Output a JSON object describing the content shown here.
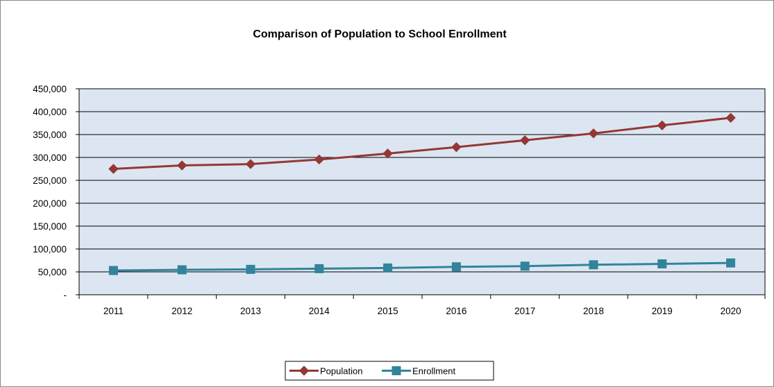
{
  "chart_data": {
    "type": "line",
    "title": "Comparison of Population to School Enrollment",
    "xlabel": "",
    "ylabel": "",
    "categories": [
      "2011",
      "2012",
      "2013",
      "2014",
      "2015",
      "2016",
      "2017",
      "2018",
      "2019",
      "2020"
    ],
    "ylim": [
      0,
      450000
    ],
    "yticks": [
      0,
      50000,
      100000,
      150000,
      200000,
      250000,
      300000,
      350000,
      400000,
      450000
    ],
    "ytick_labels": [
      "-",
      "50,000",
      "100,000",
      "150,000",
      "200,000",
      "250,000",
      "300,000",
      "350,000",
      "400,000",
      "450,000"
    ],
    "grid": true,
    "legend_position": "bottom",
    "plot_background": "#dce6f2",
    "series": [
      {
        "name": "Population",
        "color": "#953735",
        "marker": "diamond",
        "values": [
          275000,
          282500,
          285500,
          295500,
          308500,
          322500,
          337500,
          352500,
          370000,
          386500
        ]
      },
      {
        "name": "Enrollment",
        "color": "#31849b",
        "marker": "square",
        "values": [
          53000,
          54500,
          55500,
          57000,
          58500,
          61000,
          62500,
          65500,
          67500,
          69500
        ]
      }
    ]
  }
}
